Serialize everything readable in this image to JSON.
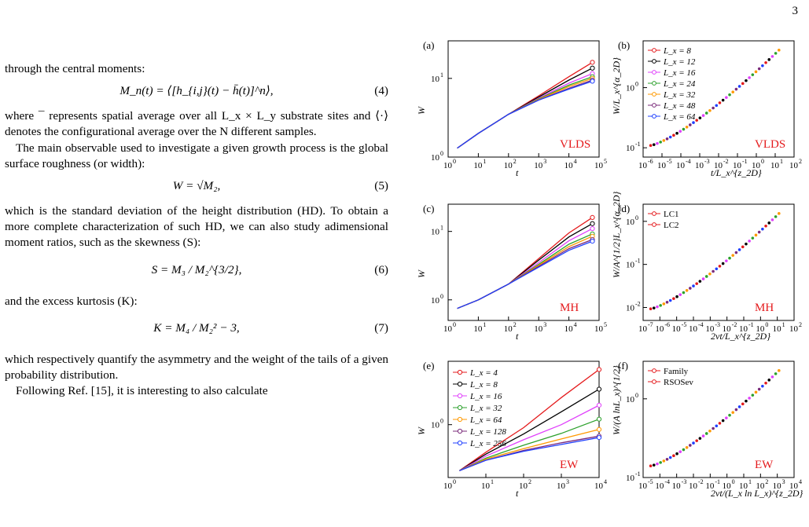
{
  "page_number": "3",
  "text": {
    "para1": "through the central moments:",
    "eq4": "M_n(t) = ⟨[h_{i,j}(t) − h̄(t)]^n⟩,",
    "eq4_num": "(4)",
    "para2": "where ¯ represents spatial average over all L_x × L_y substrate sites and ⟨·⟩ denotes the configurational average over the N different samples.",
    "para3": "The main observable used to investigate a given growth process is the global surface roughness (or width):",
    "eq5": "W = √M₂,",
    "eq5_num": "(5)",
    "para4": "which is the standard deviation of the height distribution (HD). To obtain a more complete characterization of such HD, we can also study adimensional moment ratios, such as the skewness (S):",
    "eq6": "S = M₃ / M₂^{3/2},",
    "eq6_num": "(6)",
    "para5": "and the excess kurtosis (K):",
    "eq7": "K = M₄ / M₂² − 3,",
    "eq7_num": "(7)",
    "para6": "which respectively quantify the asymmetry and the weight of the tails of a given probability distribution.",
    "para7": "Following Ref. [15], it is interesting to also calculate"
  },
  "chart_data": [
    {
      "panel": "(a)",
      "type": "line",
      "model": "VLDS",
      "xlabel": "t",
      "ylabel": "W",
      "xscale": "log",
      "yscale": "log",
      "xlim": [
        1,
        100000
      ],
      "ylim": [
        1,
        30
      ],
      "series": [
        {
          "name": "L_x = 8",
          "color": "#e41a1c",
          "x": [
            2,
            10,
            100,
            1000,
            10000,
            60000
          ],
          "y": [
            1.3,
            2.0,
            3.5,
            6.0,
            10.5,
            16
          ]
        },
        {
          "name": "L_x = 12",
          "color": "#000000",
          "x": [
            2,
            10,
            100,
            1000,
            10000,
            60000
          ],
          "y": [
            1.3,
            2.0,
            3.5,
            5.8,
            9.5,
            13.5
          ]
        },
        {
          "name": "L_x = 16",
          "color": "#e040fb",
          "x": [
            2,
            10,
            100,
            1000,
            10000,
            60000
          ],
          "y": [
            1.3,
            2.0,
            3.5,
            5.6,
            8.7,
            11.5
          ]
        },
        {
          "name": "L_x = 24",
          "color": "#2ca02c",
          "x": [
            2,
            10,
            100,
            1000,
            10000,
            60000
          ],
          "y": [
            1.3,
            2.0,
            3.5,
            5.5,
            8.2,
            10.5
          ]
        },
        {
          "name": "L_x = 32",
          "color": "#ff9900",
          "x": [
            2,
            10,
            100,
            1000,
            10000,
            60000
          ],
          "y": [
            1.3,
            2.0,
            3.5,
            5.4,
            7.9,
            10.0
          ]
        },
        {
          "name": "L_x = 48",
          "color": "#7a2a7a",
          "x": [
            2,
            10,
            100,
            1000,
            10000,
            60000
          ],
          "y": [
            1.3,
            2.0,
            3.5,
            5.3,
            7.5,
            9.5
          ]
        },
        {
          "name": "L_x = 64",
          "color": "#1f3fff",
          "x": [
            2,
            10,
            100,
            1000,
            10000,
            60000
          ],
          "y": [
            1.3,
            2.0,
            3.5,
            5.3,
            7.3,
            9.2
          ]
        }
      ]
    },
    {
      "panel": "(b)",
      "type": "scatter",
      "model": "VLDS",
      "xlabel": "t/L_x^{z_2D}",
      "ylabel": "W/L_x^{α_2D}",
      "xscale": "log",
      "yscale": "log",
      "xlim": [
        1e-06,
        100
      ],
      "ylim": [
        0.07,
        6
      ],
      "legend": [
        "L_x = 8",
        "L_x = 12",
        "L_x = 16",
        "L_x = 24",
        "L_x = 32",
        "L_x = 48",
        "L_x = 64"
      ]
    },
    {
      "panel": "(c)",
      "type": "line",
      "model": "MH",
      "xlabel": "t",
      "ylabel": "W",
      "xscale": "log",
      "yscale": "log",
      "xlim": [
        1,
        100000
      ],
      "ylim": [
        0.5,
        25
      ],
      "series": [
        {
          "name": "L_x = 8",
          "color": "#e41a1c",
          "x": [
            2,
            10,
            100,
            1000,
            10000,
            60000
          ],
          "y": [
            0.75,
            1.0,
            1.7,
            4.0,
            9.5,
            16
          ]
        },
        {
          "name": "L_x = 12",
          "color": "#000000",
          "x": [
            2,
            10,
            100,
            1000,
            10000,
            60000
          ],
          "y": [
            0.75,
            1.0,
            1.7,
            3.8,
            8.3,
            13
          ]
        },
        {
          "name": "L_x = 16",
          "color": "#e040fb",
          "x": [
            2,
            10,
            100,
            1000,
            10000,
            60000
          ],
          "y": [
            0.75,
            1.0,
            1.7,
            3.5,
            7.3,
            11
          ]
        },
        {
          "name": "L_x = 24",
          "color": "#2ca02c",
          "x": [
            2,
            10,
            100,
            1000,
            10000,
            60000
          ],
          "y": [
            0.75,
            1.0,
            1.7,
            3.3,
            6.5,
            9.2
          ]
        },
        {
          "name": "L_x = 32",
          "color": "#ff9900",
          "x": [
            2,
            10,
            100,
            1000,
            10000,
            60000
          ],
          "y": [
            0.75,
            1.0,
            1.7,
            3.2,
            6.0,
            8.5
          ]
        },
        {
          "name": "L_x = 48",
          "color": "#7a2a7a",
          "x": [
            2,
            10,
            100,
            1000,
            10000,
            60000
          ],
          "y": [
            0.75,
            1.0,
            1.7,
            3.1,
            5.6,
            7.6
          ]
        },
        {
          "name": "L_x = 64",
          "color": "#1f3fff",
          "x": [
            2,
            10,
            100,
            1000,
            10000,
            60000
          ],
          "y": [
            0.75,
            1.0,
            1.7,
            3.0,
            5.3,
            7.2
          ]
        }
      ]
    },
    {
      "panel": "(d)",
      "type": "scatter",
      "model": "MH",
      "xlabel": "2νt/L_x^{z_2D}",
      "ylabel": "W/A^{1/2}L_x^{α_2D}",
      "xscale": "log",
      "yscale": "log",
      "xlim": [
        1e-07,
        100
      ],
      "ylim": [
        0.005,
        2.5
      ],
      "legend": [
        "LC1",
        "LC2"
      ]
    },
    {
      "panel": "(e)",
      "type": "line",
      "model": "EW",
      "xlabel": "t",
      "ylabel": "W",
      "xscale": "log",
      "yscale": "log",
      "xlim": [
        1,
        10000
      ],
      "ylim": [
        0.4,
        3
      ],
      "series": [
        {
          "name": "L_x = 4",
          "color": "#e41a1c",
          "x": [
            2,
            10,
            100,
            1000,
            10000
          ],
          "y": [
            0.45,
            0.62,
            0.95,
            1.6,
            2.6
          ]
        },
        {
          "name": "L_x = 8",
          "color": "#000000",
          "x": [
            2,
            10,
            100,
            1000,
            10000
          ],
          "y": [
            0.45,
            0.6,
            0.85,
            1.25,
            1.85
          ]
        },
        {
          "name": "L_x = 16",
          "color": "#e040fb",
          "x": [
            2,
            10,
            100,
            1000,
            10000
          ],
          "y": [
            0.45,
            0.58,
            0.77,
            1.0,
            1.4
          ]
        },
        {
          "name": "L_x = 32",
          "color": "#2ca02c",
          "x": [
            2,
            10,
            100,
            1000,
            10000
          ],
          "y": [
            0.45,
            0.56,
            0.7,
            0.86,
            1.1
          ]
        },
        {
          "name": "L_x = 64",
          "color": "#ff9900",
          "x": [
            2,
            10,
            100,
            1000,
            10000
          ],
          "y": [
            0.45,
            0.55,
            0.66,
            0.78,
            0.92
          ]
        },
        {
          "name": "L_x = 128",
          "color": "#7a2a7a",
          "x": [
            2,
            10,
            100,
            1000,
            10000
          ],
          "y": [
            0.45,
            0.54,
            0.64,
            0.73,
            0.82
          ]
        },
        {
          "name": "L_x = 256",
          "color": "#1f3fff",
          "x": [
            2,
            10,
            100,
            1000,
            10000
          ],
          "y": [
            0.45,
            0.54,
            0.63,
            0.71,
            0.8
          ]
        }
      ]
    },
    {
      "panel": "(f)",
      "type": "scatter",
      "model": "EW",
      "xlabel": "2νt/(L_x ln L_x)^{z_2D}",
      "ylabel": "W/(A lnL_x)^{1/2}",
      "xscale": "log",
      "yscale": "log",
      "xlim": [
        1e-05,
        10000
      ],
      "ylim": [
        0.1,
        3
      ],
      "legend": [
        "Family",
        "RSOSev"
      ]
    }
  ]
}
